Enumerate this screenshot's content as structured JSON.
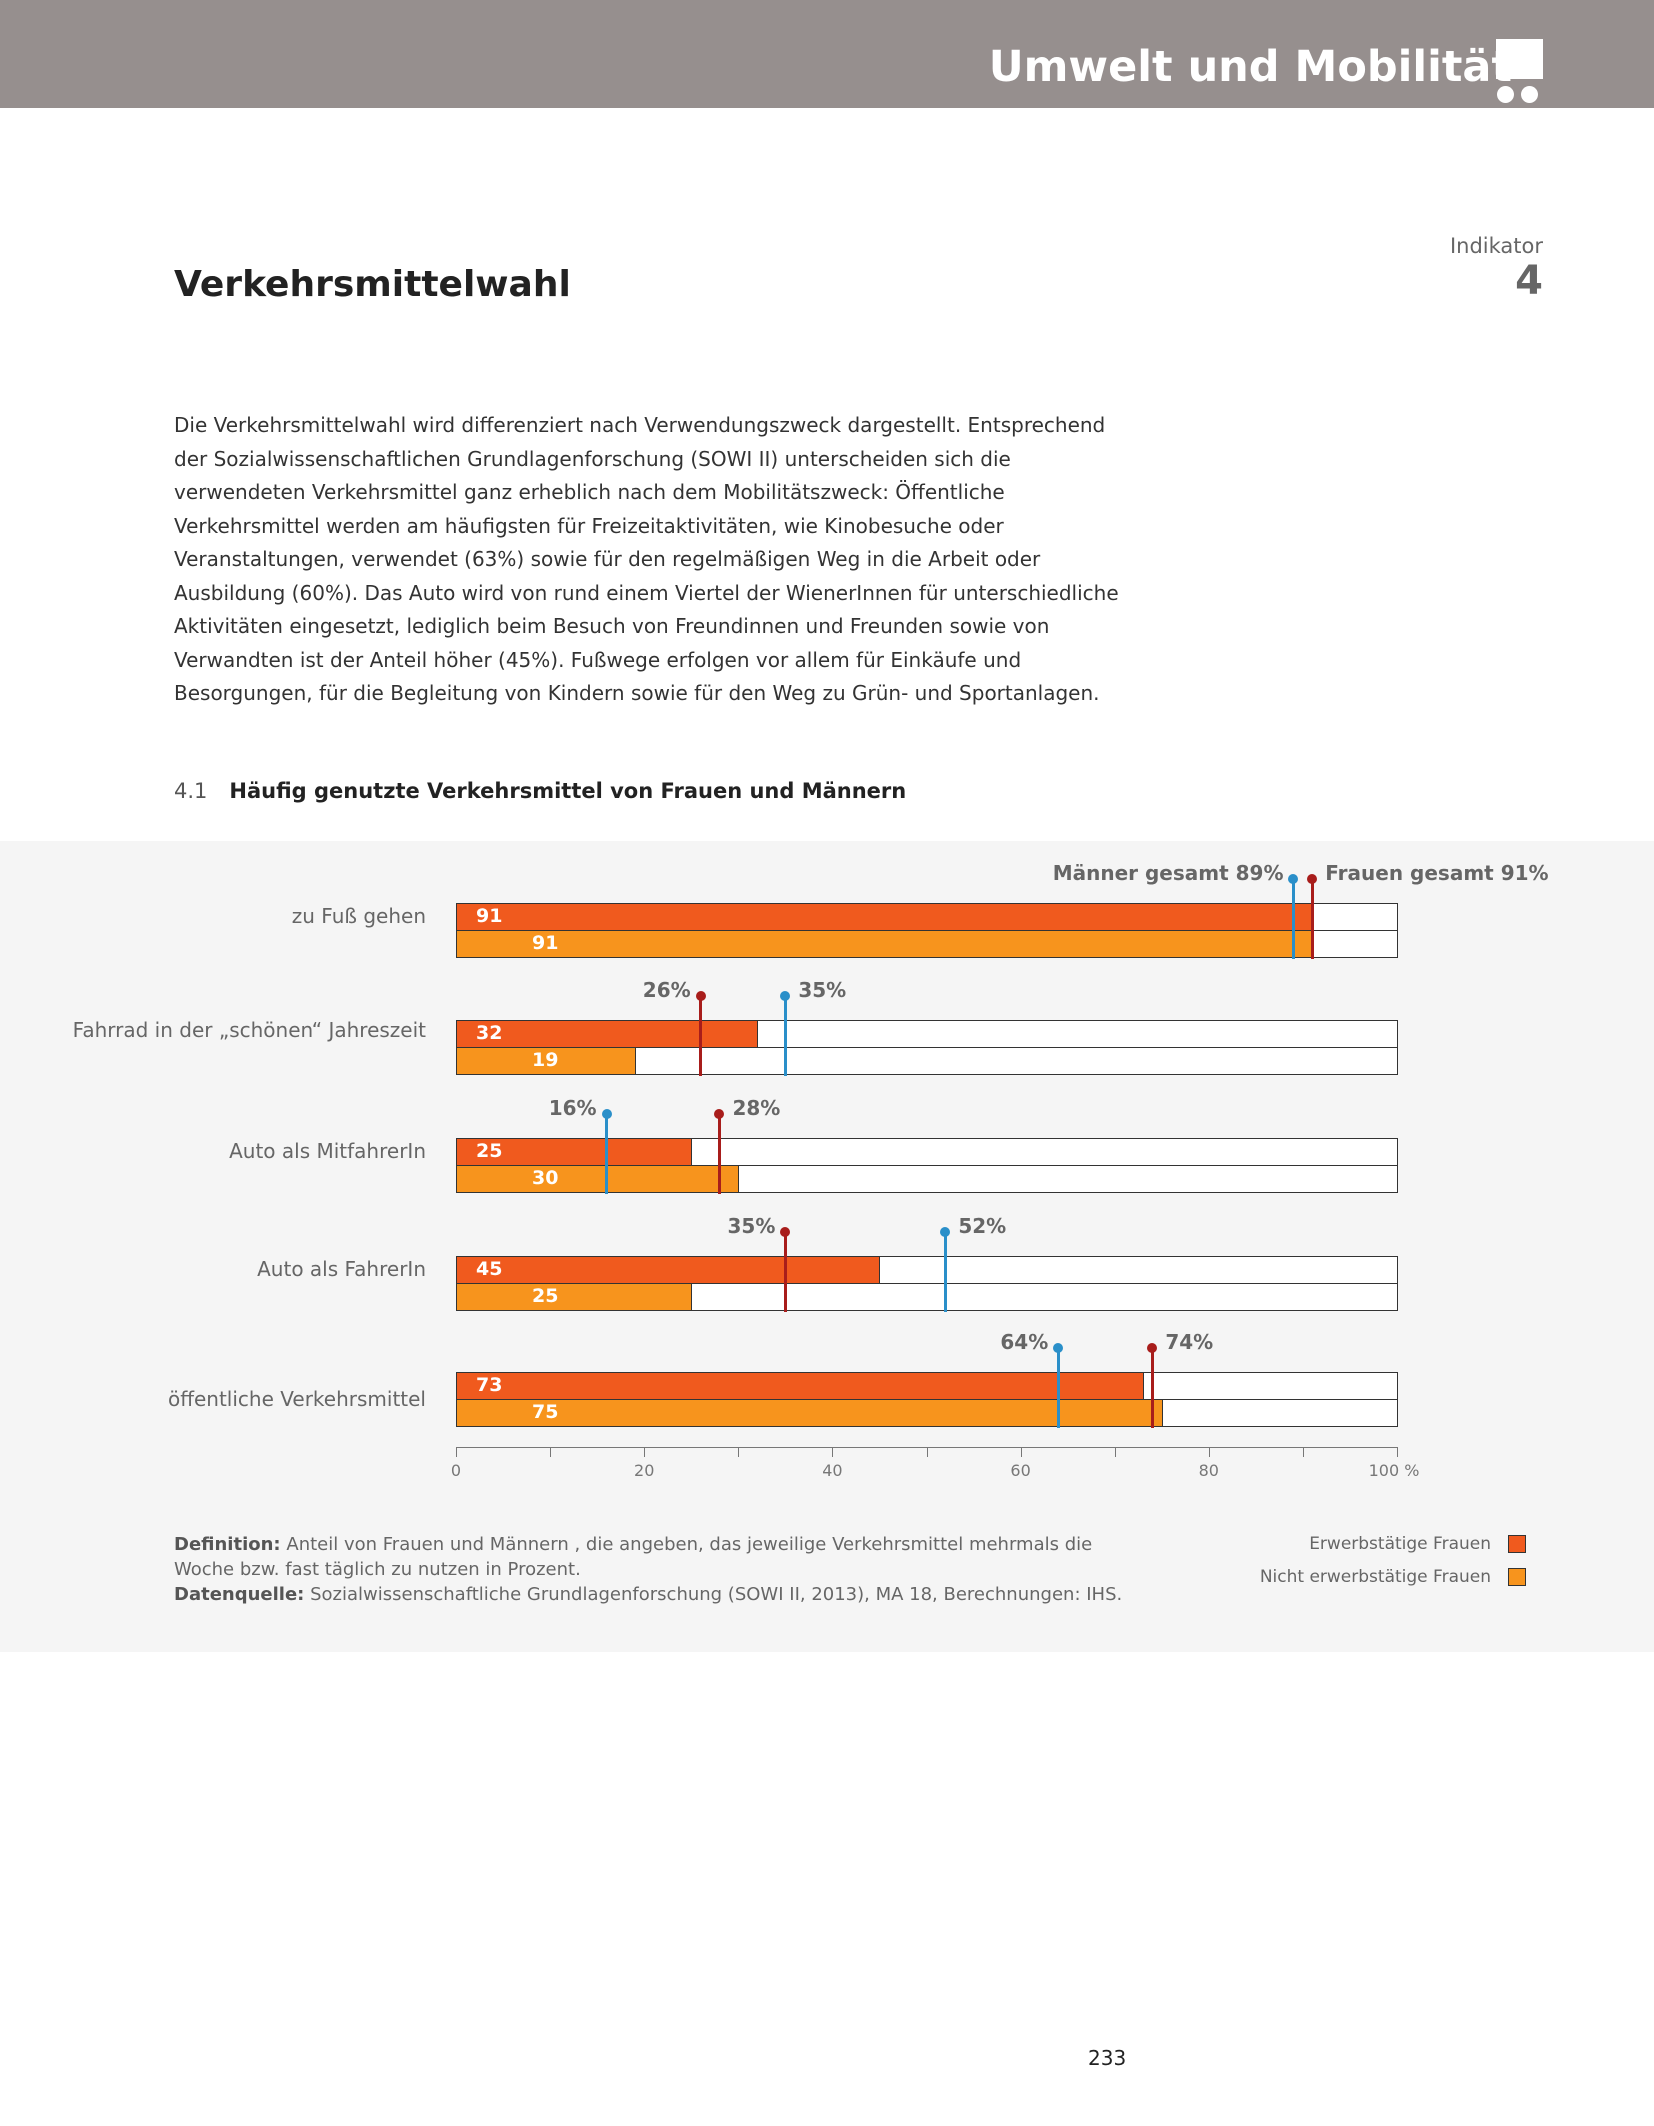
{
  "header": {
    "section_title": "Umwelt und Mobilität",
    "logo_icon": "trolley-icon"
  },
  "page": {
    "title": "Verkehrsmittelwahl",
    "indicator_label": "Indikator",
    "indicator_number": "4",
    "page_number": "233"
  },
  "paragraph": "Die Verkehrsmittelwahl wird differenziert nach Verwendungszweck dargestellt. Entsprechend der Sozialwissenschaftlichen Grundlagenforschung (SOWI II) unterscheiden sich die verwendeten Verkehrsmittel ganz erheblich nach dem Mobilitätszweck: Öffentliche Verkehrsmittel werden am häufigsten für Freizeitaktivitäten, wie Kinobesuche oder Veranstaltungen, verwendet (63%) sowie für den regelmäßigen Weg in die Arbeit oder Ausbildung (60%). Das Auto wird von rund einem Viertel der WienerInnen für unterschiedliche Aktivitäten eingesetzt, lediglich beim Besuch von Freundinnen und Freunden sowie von Verwandten ist der Anteil höher (45%). Fußwege erfolgen vor allem für Einkäufe und Besorgungen, für die Begleitung von Kindern sowie für den Weg zu Grün- und Sportanlagen.",
  "figure": {
    "number": "4.1",
    "title": "Häufig genutzte Verkehrsmittel von Frauen und Männern"
  },
  "chart_data": {
    "type": "bar",
    "orientation": "horizontal",
    "categories": [
      "zu Fuß gehen",
      "Fahrrad in der „schönen“ Jahreszeit",
      "Auto als MitfahrerIn",
      "Auto als FahrerIn",
      "öffentliche Verkehrsmittel"
    ],
    "series": [
      {
        "name": "Erwerbstätige Frauen",
        "color": "#f05a1e",
        "values": [
          91,
          32,
          25,
          45,
          73
        ],
        "labels": [
          "91",
          "32",
          "25",
          "45",
          "73"
        ]
      },
      {
        "name": "Nicht erwerbstätige Frauen",
        "color": "#f7941d",
        "values": [
          91,
          19,
          30,
          25,
          75
        ],
        "labels": [
          "91",
          "19",
          "30",
          "25",
          "75"
        ]
      }
    ],
    "reference_markers": {
      "frauen_gesamt": {
        "color": "#a81d1b",
        "values": [
          91,
          26,
          28,
          35,
          74
        ]
      },
      "maenner_gesamt": {
        "color": "#2a8fc9",
        "values": [
          89,
          35,
          16,
          52,
          64
        ]
      }
    },
    "marker_labels": [
      [
        "Männer gesamt 89%",
        "Frauen gesamt 91%"
      ],
      [
        "26%",
        "35%"
      ],
      [
        "16%",
        "28%"
      ],
      [
        "35%",
        "52%"
      ],
      [
        "64%",
        "74%"
      ]
    ],
    "xlim": [
      0,
      100
    ],
    "x_ticks": [
      "0",
      "20",
      "40",
      "60",
      "80",
      "100 %"
    ],
    "legend_placement": "bottom-right"
  },
  "notes": {
    "definition_label": "Definition:",
    "definition_text": "Anteil von Frauen und Männern , die angeben, das jeweilige Verkehrsmittel mehrmals die Woche bzw. fast täglich zu nutzen in Prozent.",
    "source_label": "Datenquelle:",
    "source_text": "Sozialwissenschaftliche Grundlagenforschung (SOWI II, 2013), MA 18, Berechnungen: IHS."
  }
}
